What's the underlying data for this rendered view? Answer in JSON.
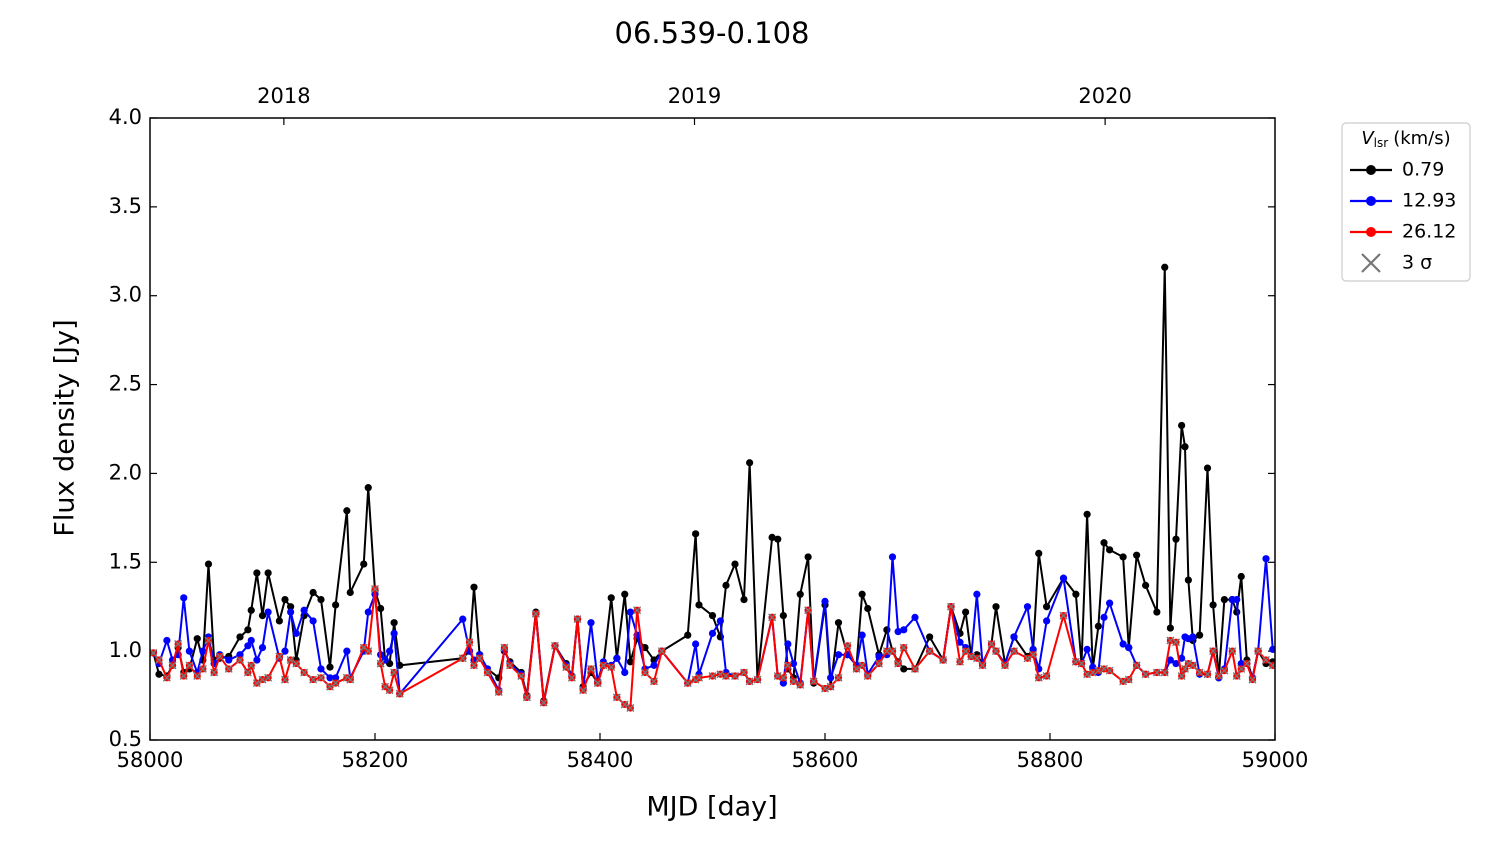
{
  "chart_data": {
    "type": "line",
    "title": "06.539-0.108",
    "x_label": "MJD [day]",
    "y_label": "Flux density [Jy]",
    "xlim": [
      58000,
      59000
    ],
    "xticks": [
      58000,
      58200,
      58400,
      58600,
      58800,
      59000
    ],
    "top_xticks": [
      {
        "value": 58119,
        "label": "2018"
      },
      {
        "value": 58484,
        "label": "2019"
      },
      {
        "value": 58849,
        "label": "2020"
      }
    ],
    "ylim": [
      0.5,
      4.0
    ],
    "yticks": [
      0.5,
      {
        "value": 1,
        "label": "1.0"
      },
      1.5,
      {
        "value": 2,
        "label": "2.0"
      },
      2.5,
      {
        "value": 3,
        "label": "3.0"
      },
      3.5,
      {
        "value": 4,
        "label": "4.0"
      }
    ],
    "legend_title": {
      "symbol": "V",
      "subscript": "lsr",
      "unit": "(km/s)"
    },
    "sigma_marker": {
      "label": "3 σ",
      "color": "#777777",
      "series": 2
    },
    "x": [
      58003,
      58008,
      58015,
      58020,
      58025,
      58030,
      58035,
      58042,
      58047,
      58052,
      58057,
      58062,
      58070,
      58080,
      58087,
      58090,
      58095,
      58100,
      58105,
      58115,
      58120,
      58125,
      58130,
      58137,
      58145,
      58152,
      58160,
      58165,
      58175,
      58178,
      58190,
      58194,
      58200,
      58205,
      58209,
      58213,
      58217,
      58222,
      58278,
      58284,
      58288,
      58293,
      58300,
      58310,
      58315,
      58320,
      58330,
      58335,
      58343,
      58350,
      58360,
      58370,
      58375,
      58380,
      58385,
      58392,
      58398,
      58403,
      58410,
      58415,
      58422,
      58427,
      58433,
      58440,
      58448,
      58455,
      58478,
      58485,
      58488,
      58500,
      58507,
      58512,
      58520,
      58528,
      58533,
      58540,
      58553,
      58558,
      58563,
      58567,
      58572,
      58578,
      58585,
      58590,
      58600,
      58605,
      58612,
      58620,
      58628,
      58633,
      58638,
      58648,
      58655,
      58660,
      58665,
      58670,
      58680,
      58693,
      58705,
      58712,
      58720,
      58725,
      58730,
      58735,
      58740,
      58748,
      58752,
      58760,
      58768,
      58780,
      58785,
      58790,
      58797,
      58812,
      58823,
      58828,
      58833,
      58838,
      58843,
      58848,
      58853,
      58865,
      58870,
      58877,
      58885,
      58895,
      58902,
      58907,
      58912,
      58917,
      58920,
      58923,
      58927,
      58933,
      58940,
      58945,
      58950,
      58955,
      58962,
      58966,
      58970,
      58975,
      58980,
      58985,
      58992,
      58998
    ],
    "series": [
      {
        "name": "0.79",
        "color": "#000000",
        "values": [
          0.99,
          0.87,
          0.86,
          0.92,
          1.02,
          0.88,
          0.9,
          1.07,
          0.95,
          1.49,
          0.95,
          0.96,
          0.97,
          1.08,
          1.12,
          1.23,
          1.44,
          1.2,
          1.44,
          1.17,
          1.29,
          1.25,
          0.95,
          1.2,
          1.33,
          1.29,
          0.91,
          1.26,
          1.79,
          1.33,
          1.49,
          1.92,
          1.34,
          1.24,
          0.95,
          0.93,
          1.16,
          0.92,
          0.96,
          1.0,
          1.36,
          0.98,
          0.9,
          0.85,
          1.0,
          0.94,
          0.88,
          0.75,
          1.22,
          0.72,
          1.03,
          0.93,
          0.86,
          1.18,
          0.8,
          0.88,
          0.82,
          0.92,
          1.3,
          0.96,
          1.32,
          0.94,
          1.07,
          1.02,
          0.95,
          1.0,
          1.09,
          1.66,
          1.26,
          1.2,
          1.08,
          1.37,
          1.49,
          1.29,
          2.06,
          0.84,
          1.64,
          1.63,
          1.2,
          0.9,
          0.85,
          1.32,
          1.53,
          0.82,
          1.26,
          0.8,
          1.16,
          0.98,
          0.92,
          1.32,
          1.24,
          0.98,
          1.12,
          1.0,
          0.94,
          0.9,
          0.9,
          1.08,
          0.95,
          1.25,
          1.1,
          1.22,
          0.97,
          0.98,
          0.93,
          1.04,
          1.25,
          0.93,
          1.08,
          0.97,
          1.01,
          1.55,
          1.25,
          1.41,
          1.32,
          0.93,
          1.77,
          0.9,
          1.14,
          1.61,
          1.57,
          1.53,
          1.02,
          1.54,
          1.37,
          1.22,
          3.16,
          1.13,
          1.63,
          2.27,
          2.15,
          1.4,
          1.06,
          1.09,
          2.03,
          1.26,
          0.85,
          1.29,
          1.29,
          1.22,
          1.42,
          0.95,
          0.85,
          1.0,
          0.93,
          0.94
        ]
      },
      {
        "name": "12.93",
        "color": "#0000ff",
        "values": [
          0.99,
          0.93,
          1.06,
          0.95,
          0.98,
          1.3,
          1.0,
          0.88,
          1.0,
          1.08,
          0.93,
          0.98,
          0.95,
          0.98,
          1.03,
          1.06,
          0.95,
          1.02,
          1.22,
          0.96,
          1.0,
          1.22,
          1.1,
          1.23,
          1.17,
          0.9,
          0.85,
          0.85,
          1.0,
          0.85,
          1.0,
          1.22,
          1.32,
          0.98,
          0.95,
          1.0,
          1.1,
          0.76,
          1.18,
          1.0,
          0.95,
          0.98,
          0.9,
          0.78,
          1.01,
          0.93,
          0.87,
          0.74,
          1.21,
          0.71,
          1.03,
          0.92,
          0.86,
          1.18,
          0.79,
          1.16,
          0.83,
          0.94,
          0.92,
          0.96,
          0.88,
          1.22,
          1.09,
          0.9,
          0.92,
          1.0,
          0.82,
          1.04,
          0.87,
          1.1,
          1.17,
          0.88,
          0.86,
          0.88,
          0.83,
          0.84,
          1.19,
          0.86,
          0.82,
          1.04,
          0.93,
          0.82,
          1.23,
          0.83,
          1.28,
          0.85,
          0.98,
          0.98,
          0.92,
          1.09,
          0.87,
          0.97,
          0.98,
          1.53,
          1.11,
          1.12,
          1.19,
          1.0,
          0.95,
          1.25,
          1.05,
          1.02,
          0.97,
          1.32,
          0.93,
          1.04,
          1.0,
          0.93,
          1.08,
          1.25,
          1.01,
          0.9,
          1.17,
          1.41,
          0.94,
          0.93,
          1.01,
          0.91,
          0.88,
          1.19,
          1.27,
          1.04,
          1.02,
          0.92,
          0.87,
          0.88,
          0.88,
          0.95,
          0.93,
          0.96,
          1.08,
          1.07,
          1.08,
          0.87,
          0.87,
          1.0,
          0.85,
          0.9,
          1.29,
          1.29,
          0.93,
          0.93,
          0.85,
          1.0,
          1.52,
          1.01
        ]
      },
      {
        "name": "26.12",
        "color": "#ff0000",
        "values": [
          0.99,
          0.95,
          0.85,
          0.92,
          1.04,
          0.86,
          0.92,
          0.86,
          0.9,
          1.06,
          0.88,
          0.97,
          0.9,
          0.95,
          0.88,
          0.92,
          0.82,
          0.84,
          0.85,
          0.97,
          0.84,
          0.95,
          0.93,
          0.88,
          0.84,
          0.85,
          0.8,
          0.82,
          0.85,
          0.84,
          1.02,
          1.0,
          1.35,
          0.93,
          0.8,
          0.78,
          0.88,
          0.76,
          0.96,
          1.05,
          0.92,
          0.96,
          0.88,
          0.77,
          1.02,
          0.92,
          0.86,
          0.74,
          1.21,
          0.71,
          1.03,
          0.91,
          0.85,
          1.18,
          0.78,
          0.9,
          0.82,
          0.92,
          0.91,
          0.74,
          0.7,
          0.68,
          1.23,
          0.88,
          0.83,
          1.0,
          0.82,
          0.84,
          0.85,
          0.86,
          0.87,
          0.86,
          0.86,
          0.88,
          0.83,
          0.84,
          1.19,
          0.86,
          0.85,
          0.92,
          0.83,
          0.81,
          1.23,
          0.83,
          0.79,
          0.8,
          0.85,
          1.03,
          0.9,
          0.92,
          0.86,
          0.93,
          1.0,
          1.0,
          0.93,
          1.02,
          0.9,
          1.0,
          0.95,
          1.25,
          0.94,
          1.0,
          0.97,
          0.96,
          0.92,
          1.04,
          1.0,
          0.92,
          1.0,
          0.96,
          0.98,
          0.85,
          0.86,
          1.2,
          0.94,
          0.93,
          0.87,
          0.88,
          0.89,
          0.9,
          0.89,
          0.83,
          0.84,
          0.92,
          0.87,
          0.88,
          0.88,
          1.06,
          1.05,
          0.86,
          0.9,
          0.93,
          0.92,
          0.88,
          0.87,
          1.0,
          0.86,
          0.89,
          1.0,
          0.86,
          0.9,
          0.93,
          0.84,
          1.0,
          0.95,
          0.92
        ]
      }
    ]
  }
}
